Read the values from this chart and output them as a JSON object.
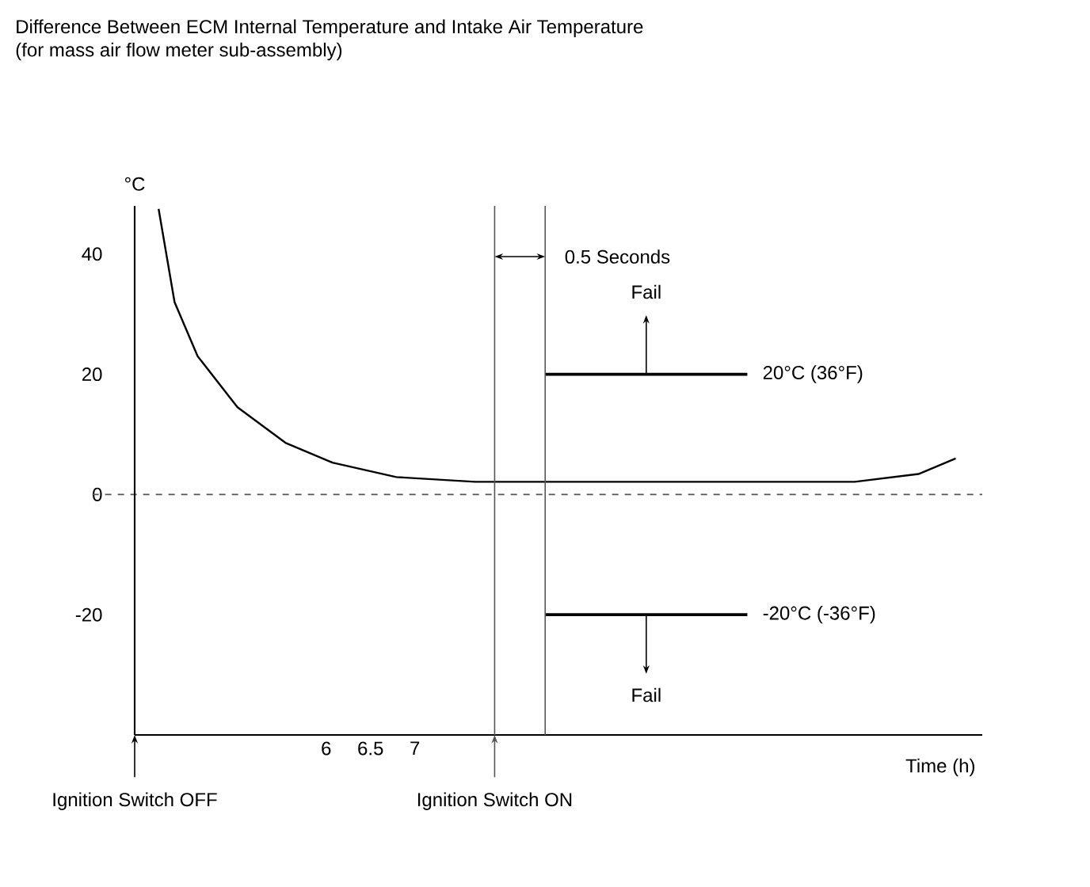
{
  "chart_data": {
    "type": "line",
    "title": "Difference Between ECM Internal Temperature and Intake Air Temperature",
    "subtitle": "(for mass air flow meter sub-assembly)",
    "xlabel": "Time (h)",
    "ylabel": "°C",
    "xlim": [
      3.84,
      13.4
    ],
    "ylim": [
      -40,
      48
    ],
    "xticks": [
      6,
      6.5,
      7
    ],
    "yticks": [
      -20,
      0,
      20,
      40
    ],
    "series": [
      {
        "color": "#000000",
        "x": [
          4.11,
          4.29,
          4.55,
          5.0,
          5.54,
          6.07,
          6.79,
          7.68,
          11.96,
          12.68,
          13.1
        ],
        "values": [
          47.5,
          32,
          23,
          14.5,
          8.6,
          5.3,
          2.9,
          2.1,
          2.1,
          3.4,
          6
        ]
      },
      {
        "name": "20°C (36°F)",
        "color": "#000000",
        "x": [
          8.47,
          10.75
        ],
        "values": [
          20,
          20
        ]
      },
      {
        "name": "-20°C (-36°F)",
        "color": "#000000",
        "x": [
          8.47,
          10.75
        ],
        "values": [
          -20,
          -20
        ]
      }
    ],
    "ref_lines": [
      {
        "axis": "y",
        "value": 0,
        "line_style": "dashed",
        "color": "#555555"
      },
      {
        "axis": "x",
        "value": 3.84,
        "label": "Ignition Switch OFF",
        "color": "#000000"
      },
      {
        "axis": "x",
        "value": 7.9,
        "label": "Ignition Switch ON",
        "color": "#555555"
      },
      {
        "axis": "x",
        "value": 8.47,
        "color": "#555555"
      }
    ],
    "annotations": [
      "0.5 Seconds",
      "Fail",
      "Fail"
    ],
    "grid": false,
    "marker": "none",
    "line_style": "solid"
  }
}
